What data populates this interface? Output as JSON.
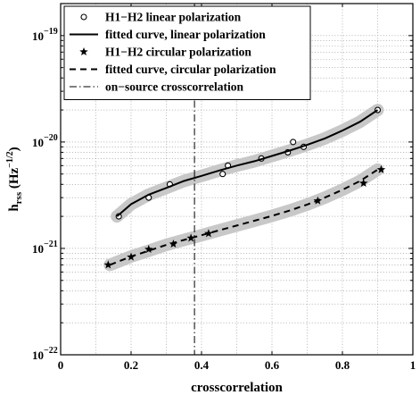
{
  "chart_data": {
    "type": "line",
    "xlabel": "crosscorrelation",
    "ylabel_main": "h",
    "ylabel_sub": "rss",
    "ylabel_unit_open": " (Hz",
    "ylabel_unit_sup": "−1/2",
    "ylabel_unit_close": ")",
    "xlim": [
      0,
      1
    ],
    "ylim": [
      1e-22,
      2e-19
    ],
    "y_scale": "log",
    "grid": true,
    "legend_position": "top-left",
    "x_ticks": [
      {
        "value": 0,
        "label": "0"
      },
      {
        "value": 0.2,
        "label": "0.2"
      },
      {
        "value": 0.4,
        "label": "0.4"
      },
      {
        "value": 0.6,
        "label": "0.6"
      },
      {
        "value": 0.8,
        "label": "0.8"
      },
      {
        "value": 1,
        "label": "1"
      }
    ],
    "y_ticks": [
      {
        "value": 1e-22,
        "base": "10",
        "exp": "−22"
      },
      {
        "value": 1e-21,
        "base": "10",
        "exp": "−21"
      },
      {
        "value": 1e-20,
        "base": "10",
        "exp": "−20"
      },
      {
        "value": 1e-19,
        "base": "10",
        "exp": "−19"
      }
    ],
    "series": [
      {
        "name": "H1−H2 linear polarization",
        "kind": "markers",
        "marker": "circle",
        "x": [
          0.165,
          0.25,
          0.31,
          0.46,
          0.475,
          0.57,
          0.645,
          0.66,
          0.69,
          0.9
        ],
        "y": [
          2e-21,
          3e-21,
          4e-21,
          5e-21,
          6e-21,
          7e-21,
          8e-21,
          1e-20,
          9e-21,
          2e-20
        ]
      },
      {
        "name": "fitted curve, linear polarization",
        "kind": "line",
        "dash": "solid",
        "band": true,
        "x": [
          0.16,
          0.2,
          0.25,
          0.3,
          0.35,
          0.4,
          0.45,
          0.5,
          0.55,
          0.6,
          0.65,
          0.7,
          0.75,
          0.8,
          0.85,
          0.9
        ],
        "y": [
          2e-21,
          2.6e-21,
          3.2e-21,
          3.7e-21,
          4.3e-21,
          4.8e-21,
          5.4e-21,
          6e-21,
          6.6e-21,
          7.4e-21,
          8.3e-21,
          9.4e-21,
          1.08e-20,
          1.28e-20,
          1.55e-20,
          2e-20
        ]
      },
      {
        "name": "H1−H2 circular polarization",
        "kind": "markers",
        "marker": "star",
        "x": [
          0.135,
          0.2,
          0.25,
          0.32,
          0.37,
          0.42,
          0.73,
          0.86,
          0.91
        ],
        "y": [
          7e-22,
          8.3e-22,
          9.8e-22,
          1.1e-21,
          1.25e-21,
          1.38e-21,
          2.8e-21,
          4.1e-21,
          5.5e-21
        ]
      },
      {
        "name": "fitted curve, circular polarization",
        "kind": "line",
        "dash": "dashed",
        "band": true,
        "x": [
          0.14,
          0.2,
          0.25,
          0.3,
          0.35,
          0.4,
          0.45,
          0.5,
          0.55,
          0.6,
          0.65,
          0.7,
          0.75,
          0.8,
          0.85,
          0.9
        ],
        "y": [
          7e-22,
          8.4e-22,
          9.5e-22,
          1.08e-21,
          1.2e-21,
          1.33e-21,
          1.48e-21,
          1.64e-21,
          1.82e-21,
          2.02e-21,
          2.27e-21,
          2.58e-21,
          3e-21,
          3.55e-21,
          4.3e-21,
          5.5e-21
        ]
      },
      {
        "name": "on−source crosscorrelation",
        "kind": "vline",
        "dash": "dashdot",
        "x_value": 0.38
      }
    ]
  }
}
